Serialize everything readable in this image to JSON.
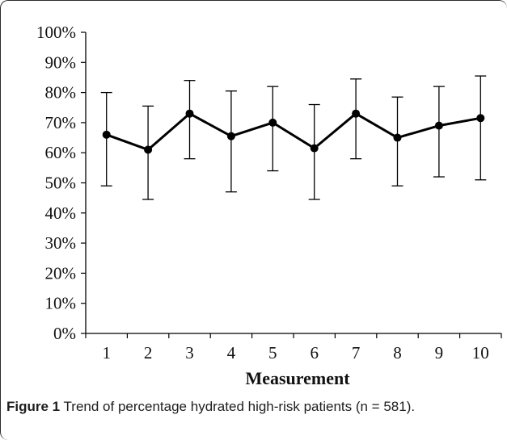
{
  "caption": {
    "label": "Figure 1",
    "text": "Trend of percentage hydrated high-risk patients (n = 581)."
  },
  "chart_data": {
    "type": "line",
    "categories": [
      "1",
      "2",
      "3",
      "4",
      "5",
      "6",
      "7",
      "8",
      "9",
      "10"
    ],
    "values": [
      66,
      61,
      73,
      65.5,
      70,
      61.5,
      73,
      65,
      69,
      71.5
    ],
    "error_low": [
      49,
      44.5,
      58,
      47,
      54,
      44.5,
      58,
      49,
      52,
      51
    ],
    "error_high": [
      80,
      75.5,
      84,
      80.5,
      82,
      76,
      84.5,
      78.5,
      82,
      85.5
    ],
    "xlabel": "Measurement",
    "ylabel": "",
    "ylim": [
      0,
      100
    ],
    "yticks": [
      "0%",
      "10%",
      "20%",
      "30%",
      "40%",
      "50%",
      "60%",
      "70%",
      "80%",
      "90%",
      "100%"
    ],
    "grid": false,
    "legend": "none",
    "line_color": "#000000"
  }
}
